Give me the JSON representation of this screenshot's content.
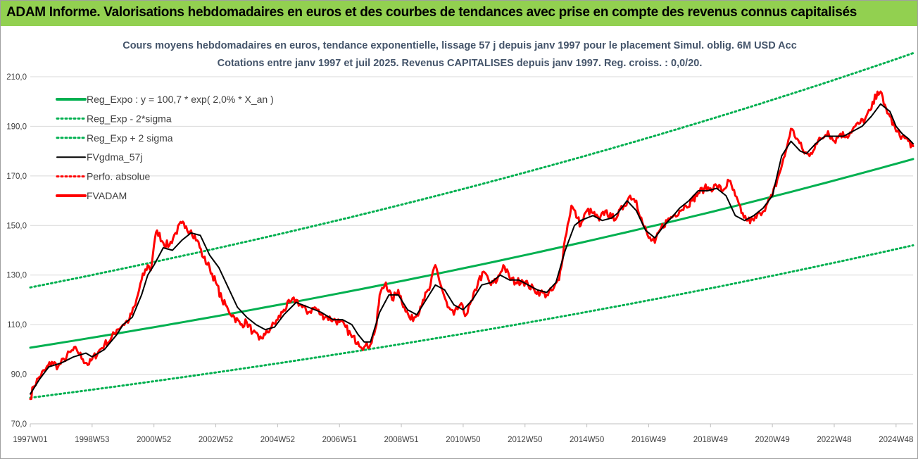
{
  "banner": {
    "title": "ADAM Informe. Valorisations hebdomadaires en euros et des courbes de tendances avec prise en compte des revenus connus capitalisés",
    "background": "#92d050"
  },
  "chart_data": {
    "type": "line",
    "title": "Cours moyens hebdomadaires en euros, tendance exponentielle, lissage 57 j depuis janv 1997  pour le placement Simul. oblig. 6M USD Acc",
    "subtitle": "Cotations entre janv 1997 et juil 2025. Revenus CAPITALISES depuis janv 1997.  Reg. croiss. : 0,0/20.",
    "xlabel": "",
    "ylabel": "",
    "xlim": [
      1997.0,
      2025.55
    ],
    "ylim": [
      70,
      210
    ],
    "y_ticks": [
      "70,0",
      "90,0",
      "110,0",
      "130,0",
      "150,0",
      "170,0",
      "190,0",
      "210,0"
    ],
    "y_tick_values": [
      70,
      90,
      110,
      130,
      150,
      170,
      190,
      210
    ],
    "x_tick_labels": [
      "1997W01",
      "1998W53",
      "2000W52",
      "2002W52",
      "2004W52",
      "2006W51",
      "2008W51",
      "2010W50",
      "2012W50",
      "2014W50",
      "2016W49",
      "2018W49",
      "2020W49",
      "2022W48",
      "2024W48"
    ],
    "x_tick_values": [
      1997.0,
      1999.0,
      2001.0,
      2003.0,
      2005.0,
      2007.0,
      2009.0,
      2011.0,
      2013.0,
      2015.0,
      2017.0,
      2019.0,
      2021.0,
      2023.0,
      2025.0
    ],
    "grid": true,
    "legend_position": "top-left",
    "series": [
      {
        "name": "Reg_Expo : y = 100,7 * exp( 2,0% *  X_an )",
        "color": "#00b050",
        "style": "solid-thick",
        "x": [
          1997.0,
          2025.55
        ],
        "values": [
          100.7,
          176.8
        ]
      },
      {
        "name": "Reg_Exp - 2*sigma",
        "color": "#00b050",
        "style": "dotted",
        "x": [
          1997.0,
          2025.55
        ],
        "values": [
          80.5,
          142.0
        ]
      },
      {
        "name": "Reg_Exp + 2 sigma",
        "color": "#00b050",
        "style": "dotted",
        "x": [
          1997.0,
          2025.55
        ],
        "values": [
          125.0,
          219.5
        ]
      },
      {
        "name": "FVgdma_57j",
        "color": "#000000",
        "style": "solid",
        "x": [
          1997.0,
          1997.3,
          1997.6,
          1998.0,
          1998.4,
          1998.8,
          1999.0,
          1999.4,
          1999.8,
          2000.0,
          2000.3,
          2000.6,
          2000.8,
          2001.0,
          2001.3,
          2001.6,
          2001.9,
          2002.2,
          2002.5,
          2002.8,
          2003.1,
          2003.4,
          2003.7,
          2004.0,
          2004.3,
          2004.6,
          2004.9,
          2005.2,
          2005.6,
          2006.0,
          2006.4,
          2006.8,
          2007.1,
          2007.4,
          2007.6,
          2007.8,
          2008.0,
          2008.3,
          2008.6,
          2008.9,
          2009.2,
          2009.5,
          2009.8,
          2010.1,
          2010.4,
          2010.7,
          2011.0,
          2011.3,
          2011.6,
          2011.9,
          2012.2,
          2012.5,
          2012.8,
          2013.1,
          2013.4,
          2013.7,
          2014.0,
          2014.3,
          2014.6,
          2014.8,
          2015.0,
          2015.2,
          2015.5,
          2015.8,
          2016.0,
          2016.3,
          2016.6,
          2016.9,
          2017.2,
          2017.5,
          2017.8,
          2018.0,
          2018.3,
          2018.6,
          2018.9,
          2019.2,
          2019.5,
          2019.8,
          2020.1,
          2020.4,
          2020.7,
          2021.0,
          2021.3,
          2021.6,
          2021.9,
          2022.1,
          2022.4,
          2022.7,
          2023.0,
          2023.3,
          2023.6,
          2023.9,
          2024.2,
          2024.5,
          2024.8,
          2025.0,
          2025.2,
          2025.4,
          2025.55
        ],
        "values": [
          82,
          88,
          93,
          94.5,
          97,
          98.5,
          97,
          100,
          106,
          110,
          113,
          122,
          130,
          134,
          141,
          140,
          144,
          147,
          146,
          138,
          133,
          125,
          117,
          113,
          110,
          108,
          109,
          114,
          119,
          117,
          115,
          112,
          112,
          110,
          106,
          103,
          103,
          115,
          122,
          122,
          116,
          114,
          120,
          126,
          124,
          118,
          116,
          120,
          126,
          127,
          130,
          128,
          128,
          126,
          124,
          123,
          127,
          140,
          150,
          152,
          153,
          154,
          152,
          153,
          155,
          160,
          156,
          148,
          145,
          150,
          154,
          157,
          160,
          164,
          164,
          165,
          162,
          154,
          152,
          154,
          157,
          162,
          178,
          184,
          180,
          179,
          183,
          186,
          186,
          186,
          188,
          190,
          194,
          199,
          196,
          190,
          187,
          185,
          183
        ]
      },
      {
        "name": "Perfo. absolue",
        "color": "#ff0000",
        "style": "dotted",
        "x": [],
        "values": []
      },
      {
        "name": "FVADAM",
        "color": "#ff0000",
        "style": "solid-thick",
        "x": [
          1997.0,
          1997.1,
          1997.3,
          1997.5,
          1997.7,
          1997.9,
          1998.1,
          1998.3,
          1998.5,
          1998.7,
          1998.9,
          1999.0,
          1999.2,
          1999.4,
          1999.6,
          1999.8,
          2000.0,
          2000.2,
          2000.4,
          2000.6,
          2000.8,
          2000.9,
          2001.0,
          2001.1,
          2001.3,
          2001.5,
          2001.7,
          2001.9,
          2002.0,
          2002.2,
          2002.4,
          2002.6,
          2002.8,
          2003.0,
          2003.2,
          2003.4,
          2003.6,
          2003.8,
          2004.0,
          2004.2,
          2004.4,
          2004.6,
          2004.8,
          2005.0,
          2005.2,
          2005.4,
          2005.6,
          2005.8,
          2006.0,
          2006.2,
          2006.4,
          2006.6,
          2006.8,
          2007.0,
          2007.2,
          2007.4,
          2007.6,
          2007.8,
          2008.0,
          2008.2,
          2008.3,
          2008.5,
          2008.7,
          2008.9,
          2009.1,
          2009.3,
          2009.5,
          2009.7,
          2009.9,
          2010.1,
          2010.3,
          2010.5,
          2010.7,
          2010.9,
          2011.1,
          2011.3,
          2011.5,
          2011.7,
          2011.9,
          2012.1,
          2012.3,
          2012.5,
          2012.7,
          2012.9,
          2013.1,
          2013.3,
          2013.5,
          2013.7,
          2013.9,
          2014.1,
          2014.3,
          2014.5,
          2014.7,
          2014.8,
          2015.0,
          2015.2,
          2015.4,
          2015.6,
          2015.8,
          2016.0,
          2016.2,
          2016.4,
          2016.6,
          2016.8,
          2017.0,
          2017.2,
          2017.4,
          2017.6,
          2017.8,
          2018.0,
          2018.2,
          2018.4,
          2018.6,
          2018.8,
          2019.0,
          2019.2,
          2019.4,
          2019.6,
          2019.8,
          2020.0,
          2020.2,
          2020.4,
          2020.6,
          2020.8,
          2021.0,
          2021.2,
          2021.4,
          2021.6,
          2021.8,
          2022.0,
          2022.2,
          2022.4,
          2022.6,
          2022.8,
          2023.0,
          2023.2,
          2023.4,
          2023.6,
          2023.8,
          2024.0,
          2024.2,
          2024.4,
          2024.5,
          2024.6,
          2024.8,
          2025.0,
          2025.2,
          2025.4,
          2025.55
        ],
        "values": [
          80,
          85,
          89,
          92,
          95,
          93,
          96,
          99,
          100,
          96,
          94,
          96,
          99,
          102,
          104,
          108,
          110,
          112,
          118,
          128,
          134,
          132,
          142,
          148,
          143,
          142,
          147,
          151,
          149,
          148,
          144,
          137,
          133,
          127,
          120,
          116,
          113,
          110,
          111,
          107,
          104,
          106,
          109,
          112,
          116,
          119,
          120,
          117,
          115,
          117,
          114,
          113,
          112,
          111,
          109,
          105,
          103,
          101,
          102,
          110,
          122,
          127,
          120,
          124,
          117,
          112,
          114,
          120,
          124,
          134,
          125,
          117,
          114,
          118,
          114,
          120,
          128,
          131,
          126,
          128,
          134,
          129,
          127,
          128,
          126,
          124,
          123,
          122,
          124,
          128,
          145,
          158,
          153,
          150,
          156,
          155,
          152,
          156,
          153,
          154,
          158,
          162,
          160,
          151,
          145,
          143,
          149,
          152,
          154,
          156,
          158,
          160,
          163,
          165,
          165,
          166,
          164,
          168,
          162,
          155,
          152,
          152,
          155,
          158,
          162,
          170,
          178,
          189,
          185,
          180,
          178,
          183,
          185,
          188,
          184,
          187,
          186,
          189,
          191,
          193,
          197,
          204,
          204,
          199,
          194,
          188,
          186,
          184,
          182
        ]
      }
    ]
  },
  "legend": {
    "items": [
      {
        "label": "Reg_Expo : y = 100,7 * exp( 2,0% *  X_an )",
        "color": "#00b050",
        "style": "solid-thick"
      },
      {
        "label": "Reg_Exp - 2*sigma",
        "color": "#00b050",
        "style": "dotted"
      },
      {
        "label": "Reg_Exp + 2 sigma",
        "color": "#00b050",
        "style": "dotted"
      },
      {
        "label": "FVgdma_57j",
        "color": "#000000",
        "style": "solid"
      },
      {
        "label": "Perfo. absolue",
        "color": "#ff0000",
        "style": "dotted"
      },
      {
        "label": "FVADAM",
        "color": "#ff0000",
        "style": "solid-thick"
      }
    ]
  }
}
